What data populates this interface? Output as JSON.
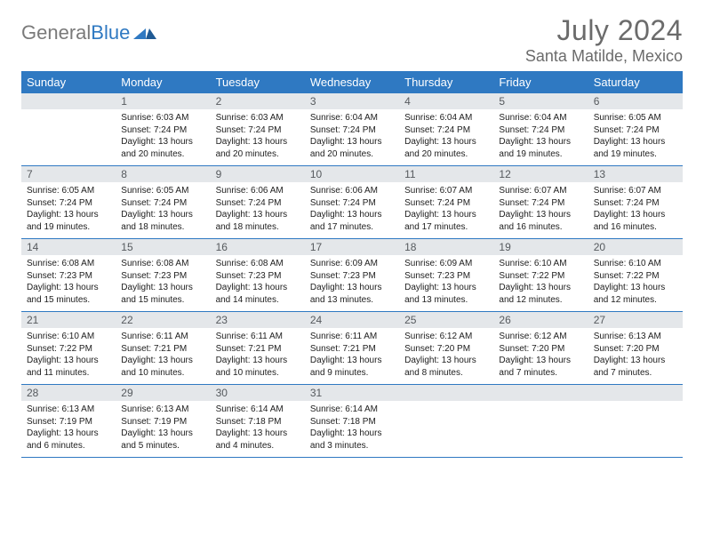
{
  "logo": {
    "part1": "General",
    "part2": "Blue"
  },
  "title": "July 2024",
  "location": "Santa Matilde, Mexico",
  "colors": {
    "header_bg": "#2f79c2",
    "header_fg": "#ffffff",
    "daynum_bg": "#e4e7ea",
    "daynum_fg": "#565a5e",
    "week_sep": "#2f79c2",
    "text": "#202020",
    "title_fg": "#6b6b6b",
    "logo_gray": "#7a7a7a"
  },
  "daysOfWeek": [
    "Sunday",
    "Monday",
    "Tuesday",
    "Wednesday",
    "Thursday",
    "Friday",
    "Saturday"
  ],
  "startDayIndex": 1,
  "daysInMonth": 31,
  "cells": {
    "1": {
      "sunrise": "6:03 AM",
      "sunset": "7:24 PM",
      "daylight": "13 hours and 20 minutes."
    },
    "2": {
      "sunrise": "6:03 AM",
      "sunset": "7:24 PM",
      "daylight": "13 hours and 20 minutes."
    },
    "3": {
      "sunrise": "6:04 AM",
      "sunset": "7:24 PM",
      "daylight": "13 hours and 20 minutes."
    },
    "4": {
      "sunrise": "6:04 AM",
      "sunset": "7:24 PM",
      "daylight": "13 hours and 20 minutes."
    },
    "5": {
      "sunrise": "6:04 AM",
      "sunset": "7:24 PM",
      "daylight": "13 hours and 19 minutes."
    },
    "6": {
      "sunrise": "6:05 AM",
      "sunset": "7:24 PM",
      "daylight": "13 hours and 19 minutes."
    },
    "7": {
      "sunrise": "6:05 AM",
      "sunset": "7:24 PM",
      "daylight": "13 hours and 19 minutes."
    },
    "8": {
      "sunrise": "6:05 AM",
      "sunset": "7:24 PM",
      "daylight": "13 hours and 18 minutes."
    },
    "9": {
      "sunrise": "6:06 AM",
      "sunset": "7:24 PM",
      "daylight": "13 hours and 18 minutes."
    },
    "10": {
      "sunrise": "6:06 AM",
      "sunset": "7:24 PM",
      "daylight": "13 hours and 17 minutes."
    },
    "11": {
      "sunrise": "6:07 AM",
      "sunset": "7:24 PM",
      "daylight": "13 hours and 17 minutes."
    },
    "12": {
      "sunrise": "6:07 AM",
      "sunset": "7:24 PM",
      "daylight": "13 hours and 16 minutes."
    },
    "13": {
      "sunrise": "6:07 AM",
      "sunset": "7:24 PM",
      "daylight": "13 hours and 16 minutes."
    },
    "14": {
      "sunrise": "6:08 AM",
      "sunset": "7:23 PM",
      "daylight": "13 hours and 15 minutes."
    },
    "15": {
      "sunrise": "6:08 AM",
      "sunset": "7:23 PM",
      "daylight": "13 hours and 15 minutes."
    },
    "16": {
      "sunrise": "6:08 AM",
      "sunset": "7:23 PM",
      "daylight": "13 hours and 14 minutes."
    },
    "17": {
      "sunrise": "6:09 AM",
      "sunset": "7:23 PM",
      "daylight": "13 hours and 13 minutes."
    },
    "18": {
      "sunrise": "6:09 AM",
      "sunset": "7:23 PM",
      "daylight": "13 hours and 13 minutes."
    },
    "19": {
      "sunrise": "6:10 AM",
      "sunset": "7:22 PM",
      "daylight": "13 hours and 12 minutes."
    },
    "20": {
      "sunrise": "6:10 AM",
      "sunset": "7:22 PM",
      "daylight": "13 hours and 12 minutes."
    },
    "21": {
      "sunrise": "6:10 AM",
      "sunset": "7:22 PM",
      "daylight": "13 hours and 11 minutes."
    },
    "22": {
      "sunrise": "6:11 AM",
      "sunset": "7:21 PM",
      "daylight": "13 hours and 10 minutes."
    },
    "23": {
      "sunrise": "6:11 AM",
      "sunset": "7:21 PM",
      "daylight": "13 hours and 10 minutes."
    },
    "24": {
      "sunrise": "6:11 AM",
      "sunset": "7:21 PM",
      "daylight": "13 hours and 9 minutes."
    },
    "25": {
      "sunrise": "6:12 AM",
      "sunset": "7:20 PM",
      "daylight": "13 hours and 8 minutes."
    },
    "26": {
      "sunrise": "6:12 AM",
      "sunset": "7:20 PM",
      "daylight": "13 hours and 7 minutes."
    },
    "27": {
      "sunrise": "6:13 AM",
      "sunset": "7:20 PM",
      "daylight": "13 hours and 7 minutes."
    },
    "28": {
      "sunrise": "6:13 AM",
      "sunset": "7:19 PM",
      "daylight": "13 hours and 6 minutes."
    },
    "29": {
      "sunrise": "6:13 AM",
      "sunset": "7:19 PM",
      "daylight": "13 hours and 5 minutes."
    },
    "30": {
      "sunrise": "6:14 AM",
      "sunset": "7:18 PM",
      "daylight": "13 hours and 4 minutes."
    },
    "31": {
      "sunrise": "6:14 AM",
      "sunset": "7:18 PM",
      "daylight": "13 hours and 3 minutes."
    }
  },
  "labels": {
    "sunrise": "Sunrise:",
    "sunset": "Sunset:",
    "daylight": "Daylight:"
  }
}
